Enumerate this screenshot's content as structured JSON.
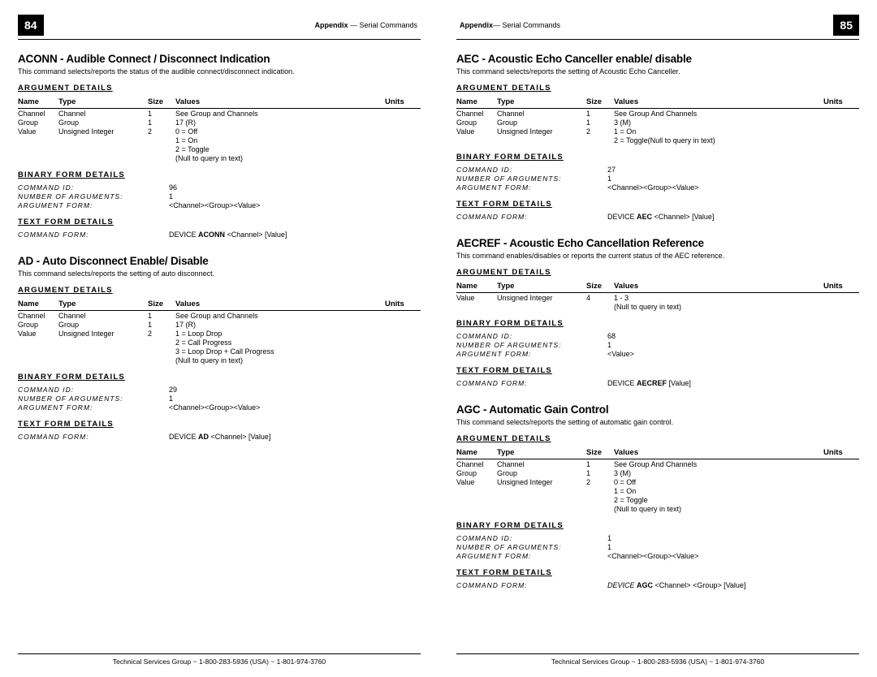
{
  "left": {
    "pageNum": "84",
    "headerBold": "Appendix",
    "headerRest": " — Serial Commands",
    "commands": [
      {
        "title": "ACONN - Audible Connect / Disconnect Indication",
        "desc": "This command selects/reports the status of the audible connect/disconnect indication.",
        "args": [
          {
            "name": "Channel",
            "type": "Channel",
            "size": "1",
            "values": [
              "See Group and Channels"
            ],
            "units": ""
          },
          {
            "name": "Group",
            "type": "Group",
            "size": "1",
            "values": [
              "17 (R)"
            ],
            "units": ""
          },
          {
            "name": "Value",
            "type": "Unsigned Integer",
            "size": "2",
            "values": [
              "0 = Off",
              "1 = On",
              "2 = Toggle",
              "(Null to query in text)"
            ],
            "units": ""
          }
        ],
        "binary": [
          {
            "label": "COMMAND ID:",
            "value": "96"
          },
          {
            "label": "NUMBER OF ARGUMENTS:",
            "value": "1"
          },
          {
            "label": "ARGUMENT FORM:",
            "value": "<Channel><Group><Value>"
          }
        ],
        "text": [
          {
            "label": "COMMAND FORM:",
            "valuePre": "DEVICE ",
            "valueBold": "ACONN",
            "valuePost": " <Channel> [Value]"
          }
        ]
      },
      {
        "title": "AD - Auto Disconnect Enable/ Disable",
        "desc": "This command selects/reports the setting of auto disconnect.",
        "args": [
          {
            "name": "Channel",
            "type": "Channel",
            "size": "1",
            "values": [
              "See Group and Channels"
            ],
            "units": ""
          },
          {
            "name": "Group",
            "type": "Group",
            "size": "1",
            "values": [
              "17 (R)"
            ],
            "units": ""
          },
          {
            "name": "Value",
            "type": "Unsigned Integer",
            "size": "2",
            "values": [
              "1 = Loop Drop",
              "2 = Call Progress",
              "3 = Loop Drop + Call Progress",
              "(Null to query in text)"
            ],
            "units": ""
          }
        ],
        "binary": [
          {
            "label": "COMMAND ID:",
            "value": "29"
          },
          {
            "label": "NUMBER OF ARGUMENTS:",
            "value": "1"
          },
          {
            "label": "ARGUMENT FORM:",
            "value": "<Channel><Group><Value>"
          }
        ],
        "text": [
          {
            "label": "COMMAND FORM:",
            "valuePre": "DEVICE ",
            "valueBold": "AD",
            "valuePost": " <Channel> [Value]"
          }
        ]
      }
    ],
    "footer": "Technical Services Group ~ 1-800-283-5936 (USA) ~ 1-801-974-3760"
  },
  "right": {
    "pageNum": "85",
    "headerBold": "Appendix",
    "headerRest": "— Serial Commands",
    "commands": [
      {
        "title": "AEC - Acoustic Echo Canceller enable/ disable",
        "desc": "This command selects/reports the setting of Acoustic Echo Canceller.",
        "args": [
          {
            "name": "Channel",
            "type": "Channel",
            "size": "1",
            "values": [
              "See Group And Channels"
            ],
            "units": ""
          },
          {
            "name": "Group",
            "type": "Group",
            "size": "1",
            "values": [
              "3 (M)"
            ],
            "units": ""
          },
          {
            "name": "Value",
            "type": "Unsigned Integer",
            "size": "2",
            "values": [
              "1 = On",
              "2 = Toggle(Null to query in text)"
            ],
            "units": ""
          }
        ],
        "binary": [
          {
            "label": "COMMAND ID:",
            "value": "27"
          },
          {
            "label": "NUMBER OF ARGUMENTS:",
            "value": "1"
          },
          {
            "label": "ARGUMENT FORM:",
            "value": "<Channel><Group><Value>"
          }
        ],
        "text": [
          {
            "label": "COMMAND FORM:",
            "valuePre": "DEVICE ",
            "valueBold": "AEC",
            "valuePost": " <Channel> [Value]"
          }
        ]
      },
      {
        "title": "AECREF - Acoustic Echo Cancellation Reference",
        "desc": "This command enables/disables or reports the current status of the AEC reference.",
        "args": [
          {
            "name": "Value",
            "type": "Unsigned Integer",
            "size": "4",
            "values": [
              "1 - 3",
              "(Null to query in text)"
            ],
            "units": ""
          }
        ],
        "binary": [
          {
            "label": "COMMAND ID:",
            "value": "68"
          },
          {
            "label": "NUMBER OF ARGUMENTS:",
            "value": "1"
          },
          {
            "label": "ARGUMENT FORM:",
            "value": "<Value>"
          }
        ],
        "text": [
          {
            "label": "COMMAND FORM:",
            "valuePre": "DEVICE ",
            "valueBold": "AECREF",
            "valuePost": " [Value]"
          }
        ]
      },
      {
        "title": "AGC - Automatic Gain Control",
        "desc": "This command selects/reports the setting of automatic gain control.",
        "args": [
          {
            "name": "Channel",
            "type": "Channel",
            "size": "1",
            "values": [
              "See Group And Channels"
            ],
            "units": ""
          },
          {
            "name": "Group",
            "type": "Group",
            "size": "1",
            "values": [
              "3 (M)"
            ],
            "units": ""
          },
          {
            "name": "Value",
            "type": "Unsigned Integer",
            "size": "2",
            "values": [
              "0 = Off",
              "1 = On",
              "2 = Toggle",
              "(Null to query in text)"
            ],
            "units": ""
          }
        ],
        "binary": [
          {
            "label": "COMMAND ID:",
            "value": "1"
          },
          {
            "label": "NUMBER OF ARGUMENTS:",
            "value": "1"
          },
          {
            "label": "ARGUMENT FORM:",
            "value": "<Channel><Group><Value>"
          }
        ],
        "text": [
          {
            "label": "COMMAND FORM:",
            "valuePreItalic": "DEVICE ",
            "valueBold": "AGC",
            "valuePost": " <Channel> <Group> [Value]"
          }
        ]
      }
    ],
    "footer": "Technical Services Group ~ 1-800-283-5936 (USA) ~ 1-801-974-3760"
  },
  "labels": {
    "argDetails": "ARGUMENT DETAILS",
    "binDetails": "BINARY FORM DETAILS",
    "txtDetails": "TEXT FORM DETAILS",
    "thName": "Name",
    "thType": "Type",
    "thSize": "Size",
    "thValues": "Values",
    "thUnits": "Units"
  }
}
